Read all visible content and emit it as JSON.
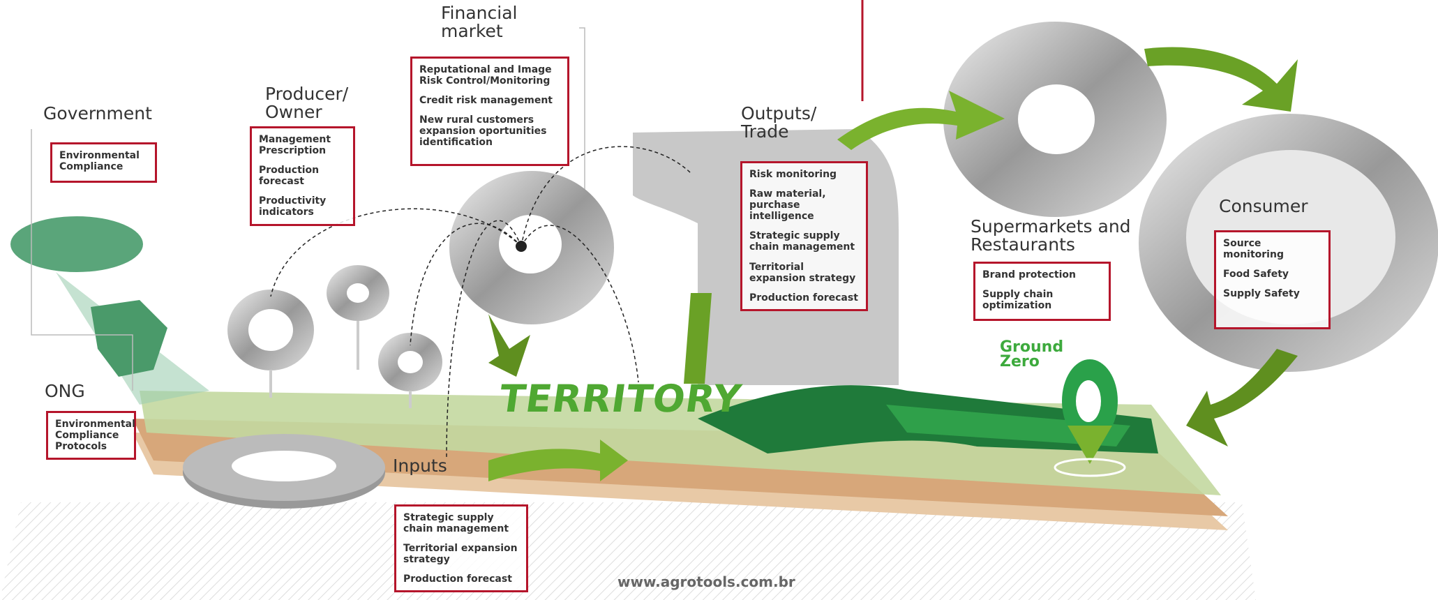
{
  "nodes": [
    {
      "title": "Government",
      "items": [
        "Environmental Compliance"
      ]
    },
    {
      "title": "Producer/ Owner",
      "items": [
        "Management Prescription",
        "Production forecast",
        "Productivity indicators"
      ]
    },
    {
      "title": "Financial market",
      "items": [
        "Reputational and Image Risk Control/Monitoring",
        "Credit risk management",
        "New rural customers expansion oportunities identification"
      ]
    },
    {
      "title": "Outputs/ Trade",
      "items": [
        "Risk monitoring",
        "Raw material, purchase intelligence",
        "Strategic supply chain management",
        "Territorial expansion strategy",
        "Production forecast"
      ]
    },
    {
      "title": "Supermarkets and Restaurants",
      "items": [
        "Brand protection",
        "Supply chain optimization"
      ]
    },
    {
      "title": "Consumer",
      "items": [
        "Source monitoring",
        "Food Safety",
        "Supply Safety"
      ]
    },
    {
      "title": "ONG",
      "items": [
        "Environmental Compliance Protocols"
      ]
    },
    {
      "title": "Inputs",
      "items": [
        "Strategic supply chain management",
        "Territorial expansion strategy",
        "Production forecast"
      ]
    }
  ],
  "territory": "TERRITORY",
  "ground_zero": "Ground Zero",
  "website": "www.agrotools.com.br"
}
